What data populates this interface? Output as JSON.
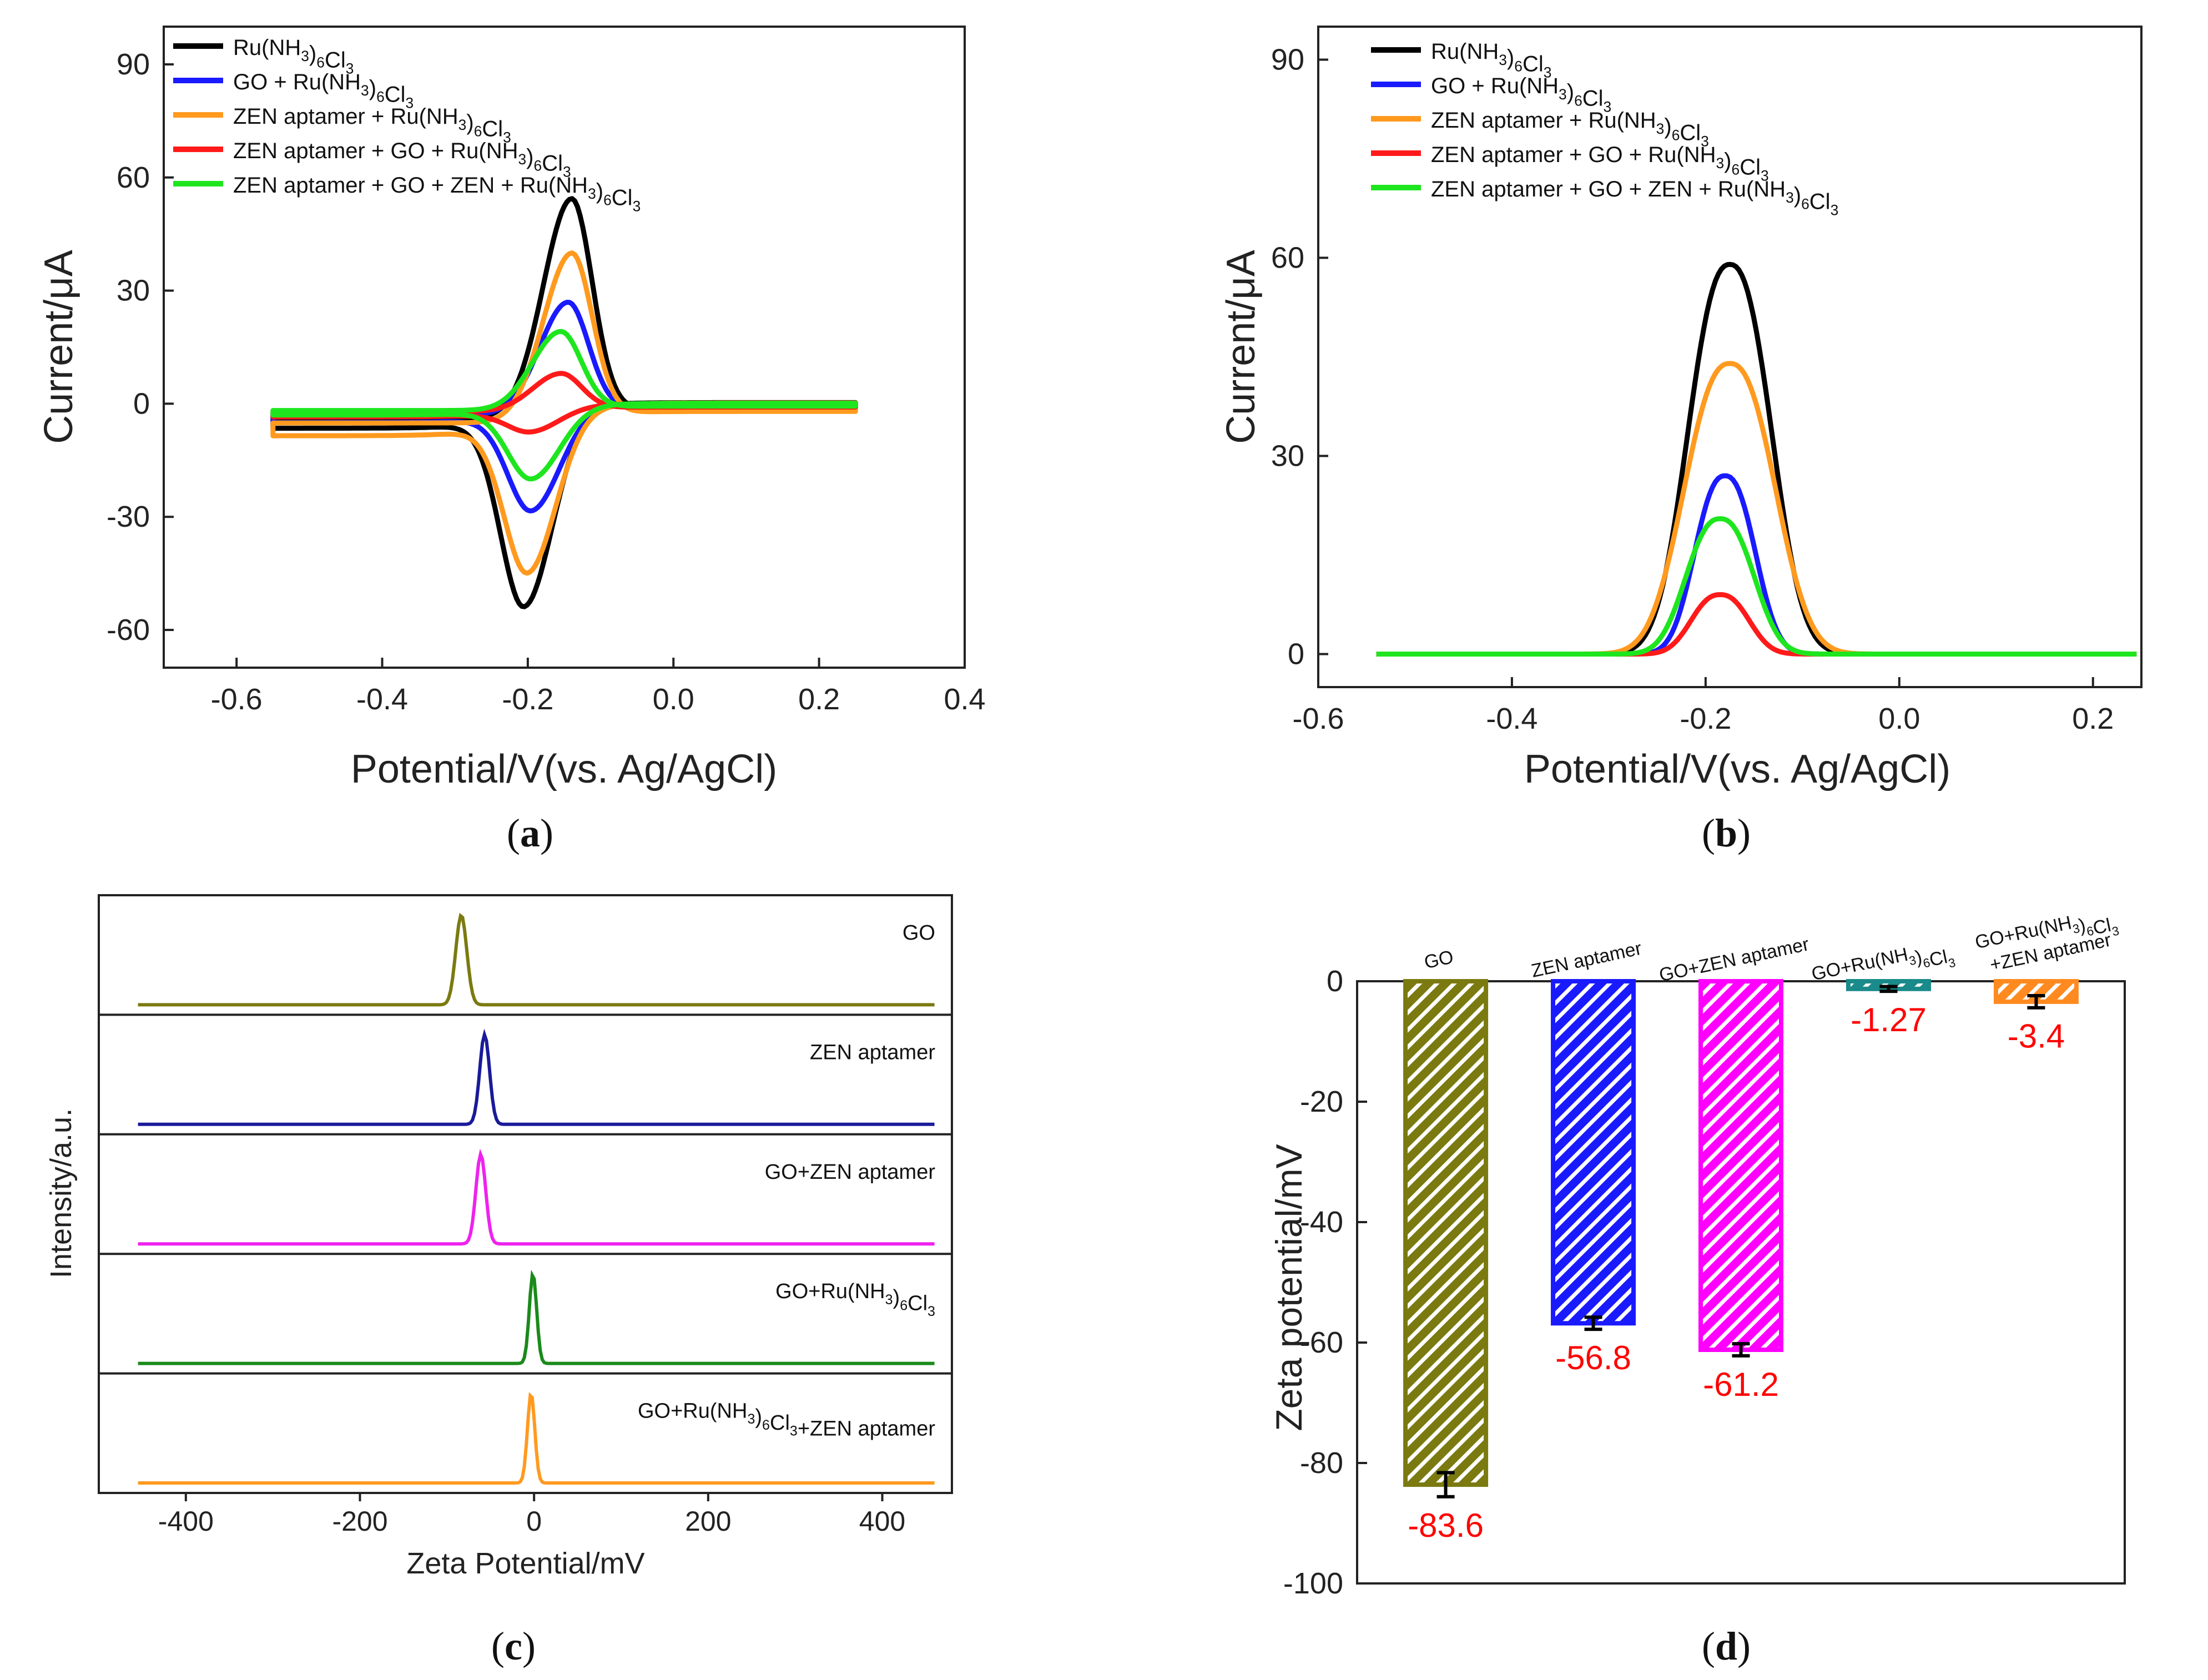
{
  "panels": [
    {
      "label_open": "(",
      "label_letter": "a",
      "label_close": ")"
    },
    {
      "label_open": "(",
      "label_letter": "b",
      "label_close": ")"
    },
    {
      "label_open": "(",
      "label_letter": "c",
      "label_close": ")"
    },
    {
      "label_open": "(",
      "label_letter": "d",
      "label_close": ")"
    }
  ],
  "legend_ab": [
    {
      "name": "Ru(NH3)6Cl3",
      "color": "#000000"
    },
    {
      "name": "GO + Ru(NH3)6Cl3",
      "color": "#1a1aff"
    },
    {
      "name": "ZEN aptamer + Ru(NH3)6Cl3",
      "color": "#ff9a1f"
    },
    {
      "name": "ZEN aptamer + GO + Ru(NH3)6Cl3",
      "color": "#ff1a1a"
    },
    {
      "name": "ZEN aptamer + GO + ZEN + Ru(NH3)6Cl3",
      "color": "#1ee61e"
    }
  ],
  "chart_data": [
    {
      "id": "a",
      "type": "line",
      "xlabel": "Potential/V(vs. Ag/AgCl)",
      "ylabel": "Current/μA",
      "xlim": [
        -0.7,
        0.4
      ],
      "ylim": [
        -70,
        100
      ],
      "xticks": [
        -0.6,
        -0.4,
        -0.2,
        0.0,
        0.2,
        0.4
      ],
      "xtick_labels": [
        "-0.6",
        "-0.4",
        "-0.2",
        "0.0",
        "0.2",
        "0.4"
      ],
      "yticks": [
        -60,
        -30,
        0,
        30,
        60,
        90
      ],
      "ytick_labels": [
        "-60",
        "-30",
        "0",
        "30",
        "60",
        "90"
      ],
      "x_range": [
        -0.55,
        0.25
      ],
      "series": [
        {
          "name": "Ru(NH3)6Cl3",
          "color": "#000000",
          "anodic_peak": [
            -0.14,
            55
          ],
          "cathodic_peak": [
            -0.205,
            -54
          ],
          "baseline_left": -6.5,
          "baseline_right": 1.5
        },
        {
          "name": "GO + Ru(NH3)6Cl3",
          "color": "#1a1aff",
          "anodic_peak": [
            -0.145,
            27.5
          ],
          "cathodic_peak": [
            -0.195,
            -28.5
          ],
          "baseline_left": -5,
          "baseline_right": 0.8
        },
        {
          "name": "ZEN aptamer + Ru(NH3)6Cl3",
          "color": "#ff9a1f",
          "anodic_peak": [
            -0.14,
            41
          ],
          "cathodic_peak": [
            -0.2,
            -45
          ],
          "baseline_left": -8.5,
          "baseline_right": 1.0
        },
        {
          "name": "ZEN aptamer + GO + Ru(NH3)6Cl3",
          "color": "#ff1a1a",
          "anodic_peak": [
            -0.155,
            8.5
          ],
          "cathodic_peak": [
            -0.195,
            -7.5
          ],
          "baseline_left": -3.5,
          "baseline_right": 0.3
        },
        {
          "name": "ZEN aptamer + GO + ZEN + Ru(NH3)6Cl3",
          "color": "#1ee61e",
          "anodic_peak": [
            -0.155,
            19.5
          ],
          "cathodic_peak": [
            -0.195,
            -20
          ],
          "baseline_left": -3,
          "baseline_right": 0.5
        }
      ]
    },
    {
      "id": "b",
      "type": "line",
      "xlabel": "Potential/V(vs. Ag/AgCl)",
      "ylabel": "Current/μA",
      "xlim": [
        -0.6,
        0.25
      ],
      "ylim": [
        -5,
        95
      ],
      "xticks": [
        -0.6,
        -0.4,
        -0.2,
        0.0,
        0.2
      ],
      "xtick_labels": [
        "-0.6",
        "-0.4",
        "-0.2",
        "0.0",
        "0.2"
      ],
      "yticks": [
        0,
        30,
        60,
        90
      ],
      "ytick_labels": [
        "0",
        "30",
        "60",
        "90"
      ],
      "x_range": [
        -0.54,
        0.245
      ],
      "series": [
        {
          "name": "Ru(NH3)6Cl3",
          "color": "#000000",
          "peak": [
            -0.175,
            59
          ],
          "width": 0.055
        },
        {
          "name": "GO + Ru(NH3)6Cl3",
          "color": "#1a1aff",
          "peak": [
            -0.18,
            27
          ],
          "width": 0.04
        },
        {
          "name": "ZEN aptamer + Ru(NH3)6Cl3",
          "color": "#ff9a1f",
          "peak": [
            -0.175,
            44
          ],
          "width": 0.06
        },
        {
          "name": "ZEN aptamer + GO + Ru(NH3)6Cl3",
          "color": "#ff1a1a",
          "peak": [
            -0.185,
            9
          ],
          "width": 0.038
        },
        {
          "name": "ZEN aptamer + GO + ZEN + Ru(NH3)6Cl3",
          "color": "#1ee61e",
          "peak": [
            -0.185,
            20.5
          ],
          "width": 0.045
        }
      ]
    },
    {
      "id": "c",
      "type": "line",
      "xlabel": "Zeta Potential/mV",
      "ylabel": "Intensity/a.u.",
      "xlim": [
        -500,
        480
      ],
      "xticks": [
        -400,
        -200,
        0,
        200,
        400
      ],
      "xtick_labels": [
        "-400",
        "-200",
        "0",
        "200",
        "400"
      ],
      "series": [
        {
          "name": "GO",
          "color": "#7a7a10",
          "peak_x": -83.6,
          "width": 9
        },
        {
          "name": "ZEN aptamer",
          "color": "#1a1a9a",
          "peak_x": -56.8,
          "width": 8
        },
        {
          "name": "GO+ZEN aptamer",
          "color": "#ee22ee",
          "peak_x": -61.2,
          "width": 8
        },
        {
          "name": "GO+Ru(NH3)6Cl3",
          "color": "#1a8a1a",
          "peak_x": -1.27,
          "width": 6
        },
        {
          "name": "GO+Ru(NH3)6Cl3+ZEN aptamer",
          "color": "#ff9a1f",
          "peak_x": -3.4,
          "width": 6
        }
      ]
    },
    {
      "id": "d",
      "type": "bar",
      "ylabel": "Zeta potential/mV",
      "ylim": [
        -100,
        0
      ],
      "yticks": [
        0,
        -20,
        -40,
        -60,
        -80,
        -100
      ],
      "ytick_labels": [
        "0",
        "-20",
        "-40",
        "-60",
        "-80",
        "-100"
      ],
      "categories": [
        "GO",
        "ZEN aptamer",
        "GO+ZEN aptamer",
        "GO+Ru(NH3)6Cl3",
        "GO+Ru(NH3)6Cl3 +ZEN aptamer"
      ],
      "values": [
        -83.6,
        -56.8,
        -61.2,
        -1.27,
        -3.4
      ],
      "value_labels": [
        "-83.6",
        "-56.8",
        "-61.2",
        "-1.27",
        "-3.4"
      ],
      "errors": [
        2.0,
        1.0,
        1.0,
        0.4,
        1.0
      ],
      "colors": [
        "#7a7a10",
        "#1a1aff",
        "#ff00ff",
        "#1a8a8a",
        "#ff8a1f"
      ]
    }
  ]
}
